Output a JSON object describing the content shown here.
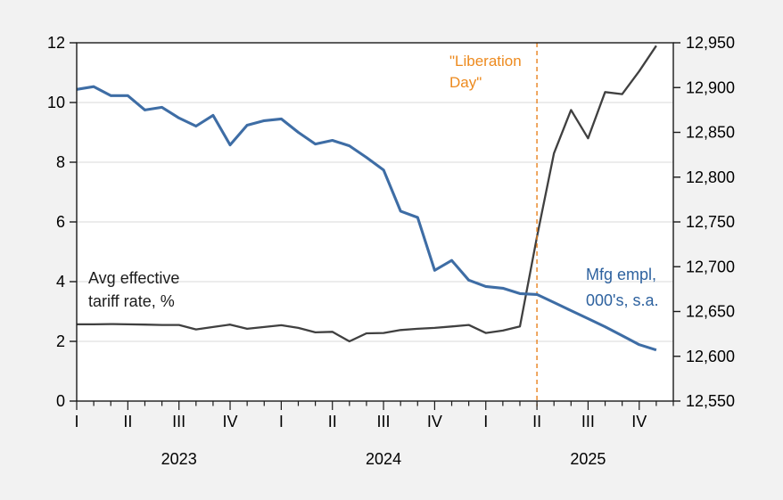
{
  "chart_data": {
    "type": "line",
    "title": "",
    "x": {
      "start": "2023-01",
      "end": "2025-12",
      "months_total": 36,
      "quarter_tick_labels": [
        "I",
        "II",
        "III",
        "IV",
        "I",
        "II",
        "III",
        "IV",
        "I",
        "II",
        "III",
        "IV"
      ],
      "year_labels": [
        {
          "text": "2023",
          "month_index": 6
        },
        {
          "text": "2024",
          "month_index": 18
        },
        {
          "text": "2025",
          "month_index": 30
        }
      ]
    },
    "left_axis": {
      "min": 0,
      "max": 12,
      "tick_values": [
        0,
        2,
        4,
        6,
        8,
        10,
        12
      ],
      "tick_labels": [
        "0",
        "2",
        "4",
        "6",
        "8",
        "10",
        "12"
      ],
      "gridline_values": [
        2,
        4,
        6,
        8,
        10
      ]
    },
    "right_axis": {
      "min": 12550,
      "max": 12950,
      "tick_values": [
        12550,
        12600,
        12650,
        12700,
        12750,
        12800,
        12850,
        12900,
        12950
      ],
      "tick_labels": [
        "12,550",
        "12,600",
        "12,650",
        "12,700",
        "12,750",
        "12,800",
        "12,850",
        "12,900",
        "12,950"
      ]
    },
    "series": [
      {
        "name": "Avg effective tariff rate, %",
        "axis": "left",
        "color": "#404040",
        "values": [
          2.57,
          2.57,
          2.58,
          2.57,
          2.56,
          2.55,
          2.55,
          2.4,
          2.48,
          2.56,
          2.42,
          2.48,
          2.54,
          2.45,
          2.3,
          2.32,
          2.0,
          2.27,
          2.28,
          2.38,
          2.42,
          2.45,
          2.5,
          2.55,
          2.28,
          2.36,
          2.5,
          5.5,
          8.3,
          9.75,
          8.8,
          10.35,
          10.28,
          11.05,
          11.9
        ]
      },
      {
        "name": "Mfg empl, 000's, s.a.",
        "axis": "right",
        "color": "#3e6da5",
        "values": [
          12898,
          12901,
          12891,
          12891,
          12875,
          12878,
          12866,
          12857,
          12869,
          12836,
          12858,
          12863,
          12865,
          12850,
          12837,
          12841,
          12835,
          12822,
          12808,
          12762,
          12755,
          12696,
          12707,
          12685,
          12678,
          12676,
          12670,
          12669,
          12660,
          12651,
          12642,
          12633,
          12623,
          12613,
          12607
        ]
      }
    ],
    "annotation_line": {
      "label": "\"Liberation Day\"",
      "month_index": 27,
      "month": "2025-04",
      "color": "#e8821e",
      "style": "dashed"
    },
    "legend_position": "in-plot text labels",
    "grid": "horizontal only"
  },
  "labels": {
    "tariff_line1": "Avg effective",
    "tariff_line2": "tariff rate, %",
    "mfg_line1": "Mfg empl,",
    "mfg_line2": "000's, s.a.",
    "liberation_line1": "\"Liberation",
    "liberation_line2": "Day\""
  },
  "colors": {
    "background": "#f2f2f2",
    "plot_background": "#ffffff",
    "gridline": "#d9d9d9",
    "frame": "#1a1a1a",
    "tariff_line": "#404040",
    "mfg_line": "#3e6da5",
    "mfg_text": "#2e629f",
    "liberation": "#e8821e",
    "axis_text": "#000000"
  }
}
